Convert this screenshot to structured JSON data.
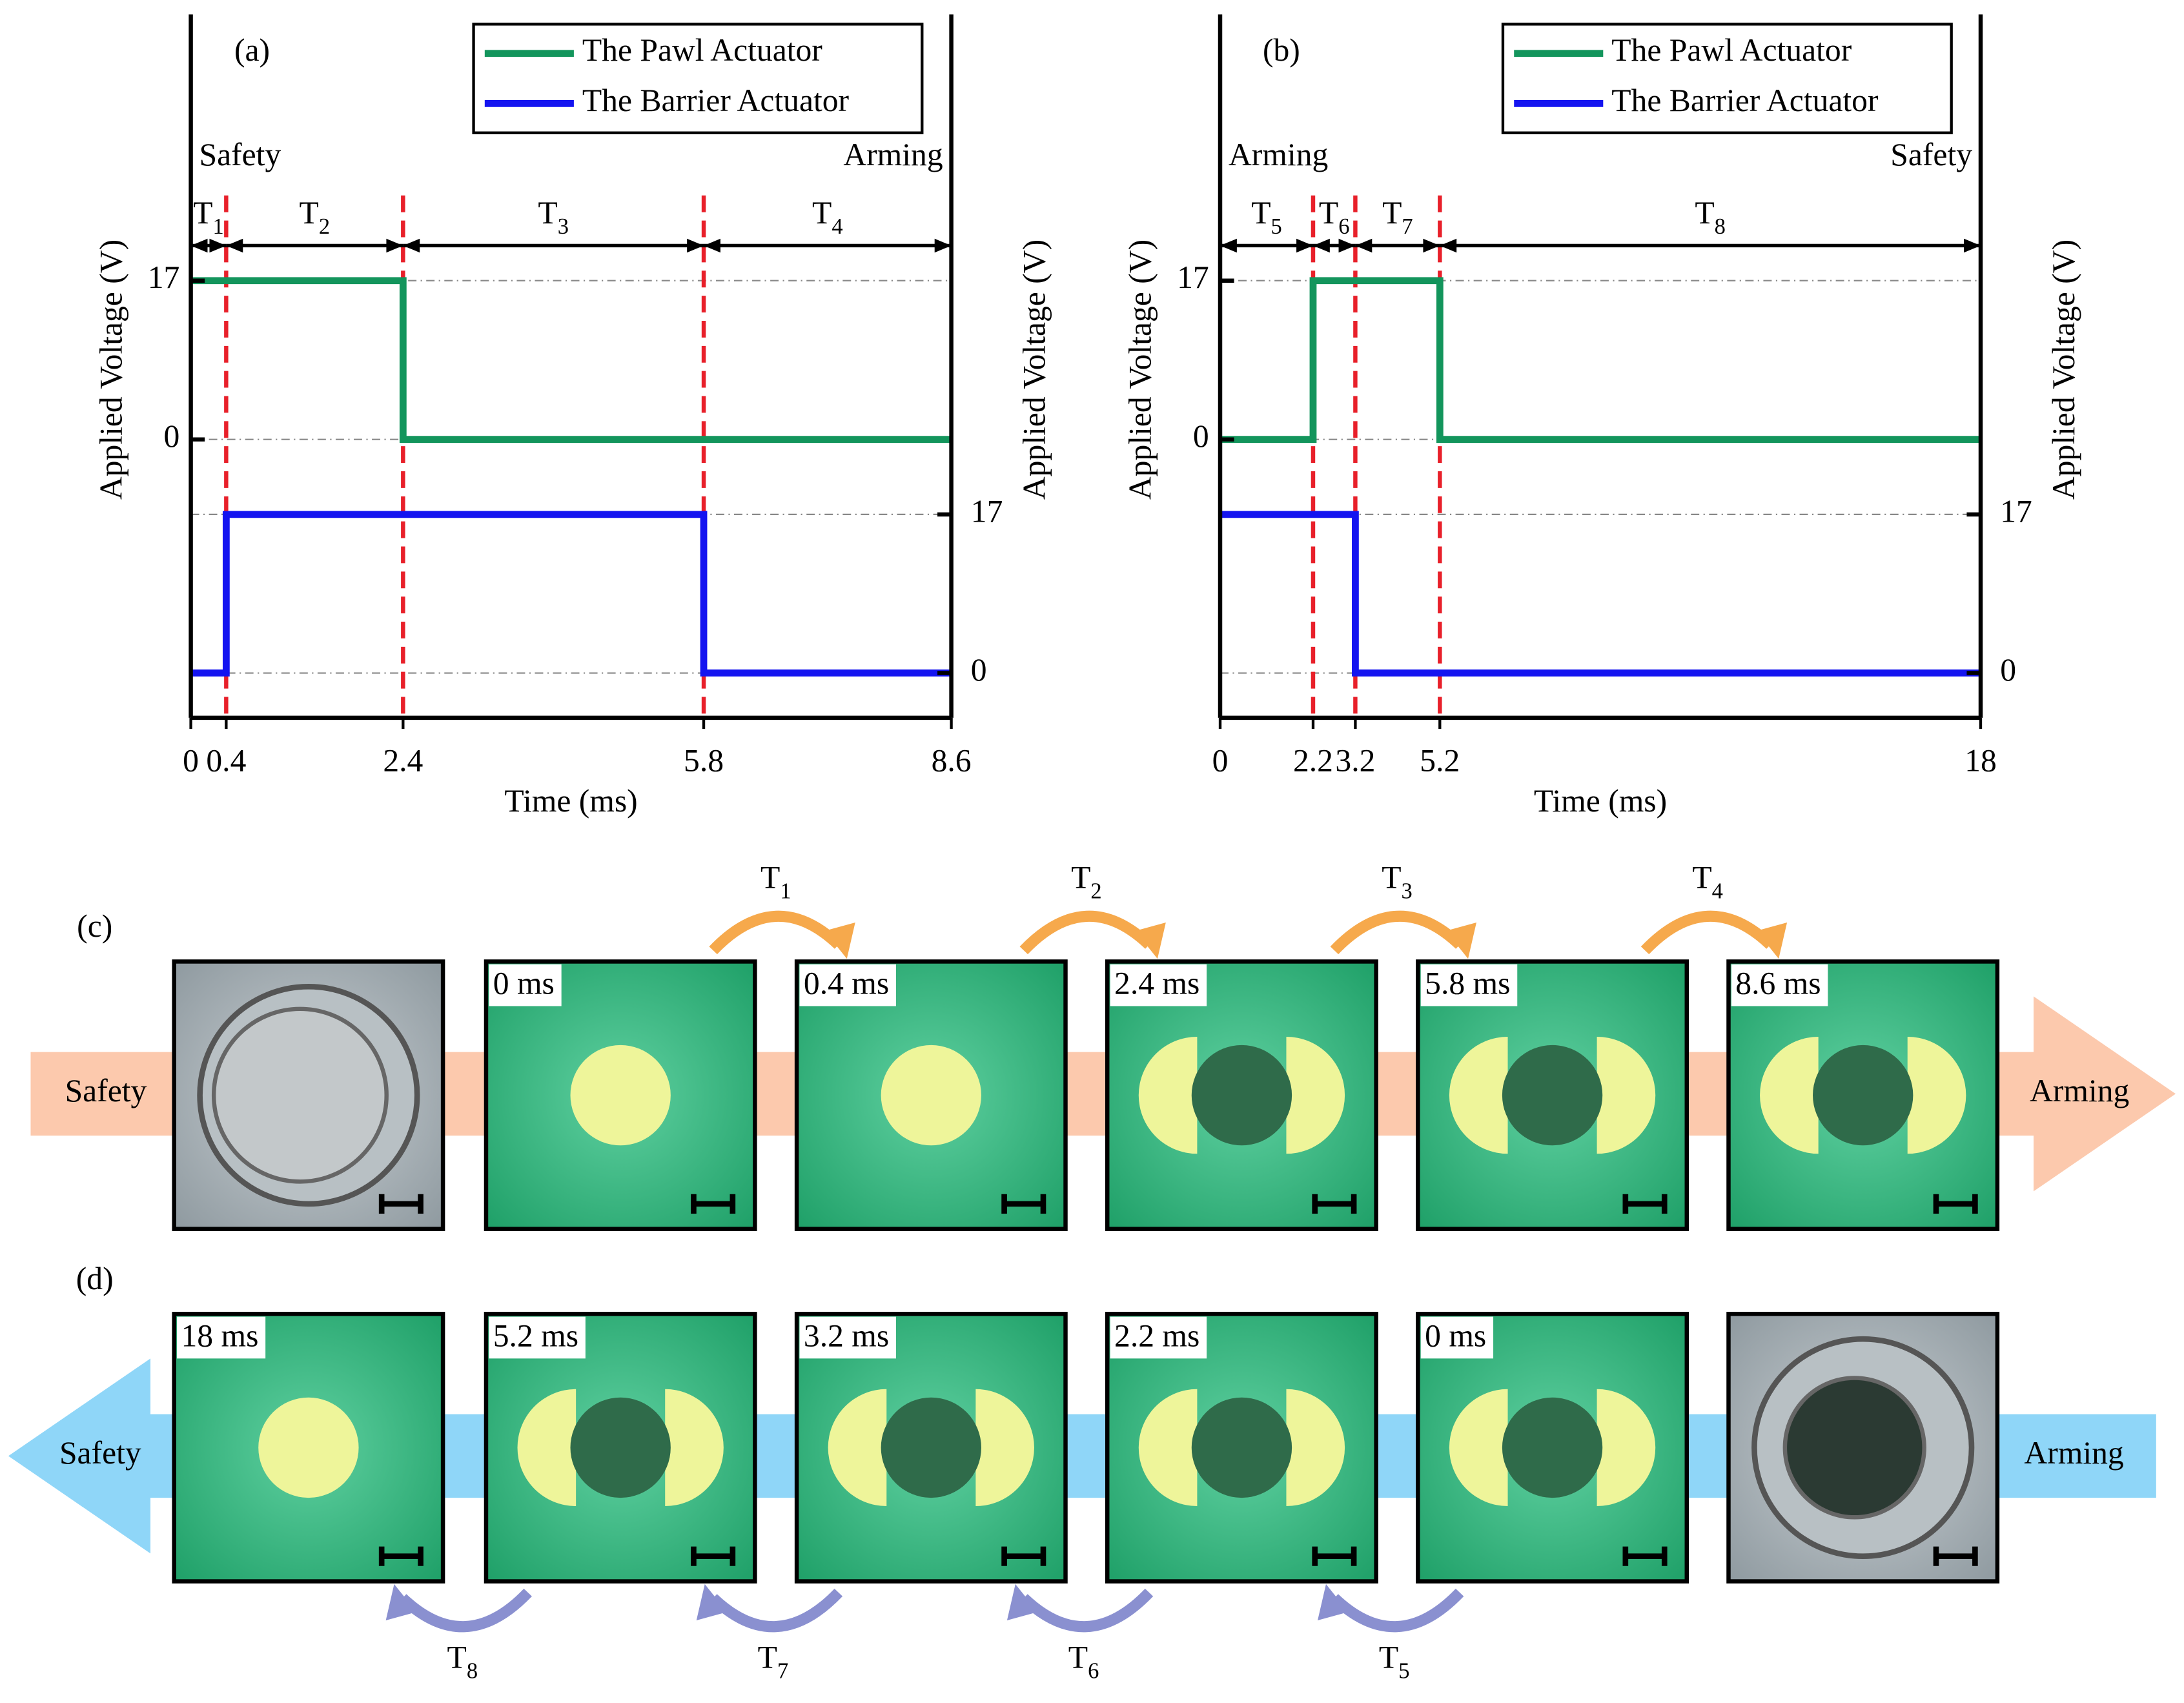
{
  "chart_data": [
    {
      "type": "line",
      "panel": "(a)",
      "xlabel": "Time (ms)",
      "ylabel": "Applied Voltage (V)",
      "y2label": "Applied Voltage (V)",
      "xlim": [
        0,
        8.6
      ],
      "xticks": [
        0,
        0.4,
        2.4,
        5.8,
        8.6
      ],
      "ylim": [
        -29.8,
        45.5
      ],
      "yticks": [
        0,
        17
      ],
      "y2lim": [
        -4.8,
        70.6
      ],
      "y2ticks": [
        0,
        17
      ],
      "grid": true,
      "legend": "upper right",
      "states": [
        "Safety",
        "Arming"
      ],
      "markers": [
        0.4,
        2.4,
        5.8
      ],
      "intervals": [
        {
          "label": "T",
          "sub": "1",
          "from": 0,
          "to": 0.4
        },
        {
          "label": "T",
          "sub": "2",
          "from": 0.4,
          "to": 2.4
        },
        {
          "label": "T",
          "sub": "3",
          "from": 2.4,
          "to": 5.8
        },
        {
          "label": "T",
          "sub": "4",
          "from": 5.8,
          "to": 8.6
        }
      ],
      "series": [
        {
          "name": "The Pawl Actuator",
          "color": "#13955c",
          "x": [
            0,
            2.4,
            2.4,
            8.6
          ],
          "values": [
            17,
            17,
            0,
            0
          ]
        },
        {
          "name": "The Barrier Actuator",
          "color": "#1414f0",
          "axis": "y2",
          "x": [
            0,
            0.4,
            0.4,
            5.8,
            5.8,
            8.6
          ],
          "values": [
            0,
            0,
            17,
            17,
            0,
            0
          ]
        }
      ]
    },
    {
      "type": "line",
      "panel": "(b)",
      "xlabel": "Time (ms)",
      "ylabel": "Applied Voltage (V)",
      "y2label": "Applied Voltage (V)",
      "xlim": [
        0,
        18
      ],
      "xticks": [
        0,
        2.2,
        3.2,
        5.2,
        18
      ],
      "ylim": [
        -29.8,
        45.5
      ],
      "yticks": [
        0,
        17
      ],
      "y2lim": [
        -4.8,
        70.6
      ],
      "y2ticks": [
        0,
        17
      ],
      "grid": true,
      "legend": "upper right",
      "states": [
        "Arming",
        "Safety"
      ],
      "markers": [
        2.2,
        3.2,
        5.2
      ],
      "intervals": [
        {
          "label": "T",
          "sub": "5",
          "from": 0,
          "to": 2.2
        },
        {
          "label": "T",
          "sub": "6",
          "from": 2.2,
          "to": 3.2
        },
        {
          "label": "T",
          "sub": "7",
          "from": 3.2,
          "to": 5.2
        },
        {
          "label": "T",
          "sub": "8",
          "from": 5.2,
          "to": 18
        }
      ],
      "series": [
        {
          "name": "The Pawl Actuator",
          "color": "#13955c",
          "x": [
            0,
            2.2,
            2.2,
            5.2,
            5.2,
            18
          ],
          "values": [
            0,
            0,
            17,
            17,
            0,
            0
          ]
        },
        {
          "name": "The Barrier Actuator",
          "color": "#1414f0",
          "axis": "y2",
          "x": [
            0,
            3.2,
            3.2,
            18
          ],
          "values": [
            17,
            17,
            0,
            0
          ]
        }
      ]
    }
  ],
  "panels": [
    {
      "label": "(c)",
      "start": "Safety",
      "end": "Arming",
      "frames": [
        null,
        "0 ms",
        "0.4 ms",
        "2.4 ms",
        "5.8 ms",
        "8.6 ms"
      ],
      "transitions": [
        {
          "label": "T",
          "sub": "1"
        },
        {
          "label": "T",
          "sub": "2"
        },
        {
          "label": "T",
          "sub": "3"
        },
        {
          "label": "T",
          "sub": "4"
        }
      ]
    },
    {
      "label": "(d)",
      "start": "Safety",
      "end": "Arming",
      "frames": [
        "18 ms",
        "5.2 ms",
        "3.2 ms",
        "2.2 ms",
        "0 ms",
        null
      ],
      "transitions": [
        {
          "label": "T",
          "sub": "8"
        },
        {
          "label": "T",
          "sub": "7"
        },
        {
          "label": "T",
          "sub": "6"
        },
        {
          "label": "T",
          "sub": "5"
        }
      ]
    }
  ]
}
